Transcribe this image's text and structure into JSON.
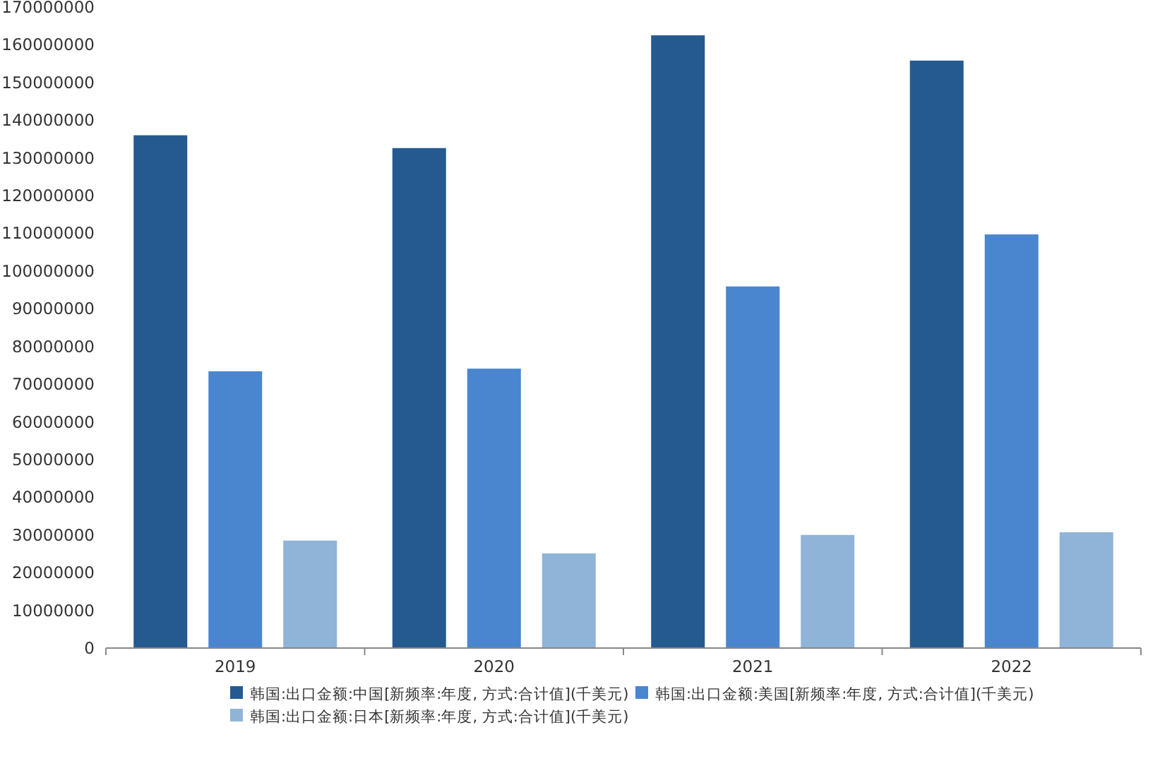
{
  "chart_data": {
    "type": "bar",
    "categories": [
      "2019",
      "2020",
      "2021",
      "2022"
    ],
    "series": [
      {
        "name": "韩国:出口金额:中国[新频率:年度, 方式:合计值](千美元)",
        "color": "#255a91",
        "values": [
          136000000,
          132600000,
          162500000,
          155800000
        ]
      },
      {
        "name": "韩国:出口金额:美国[新频率:年度, 方式:合计值](千美元)",
        "color": "#4a86cf",
        "values": [
          73400000,
          74100000,
          95900000,
          109700000
        ]
      },
      {
        "name": "韩国:出口金额:日本[新频率:年度, 方式:合计值](千美元)",
        "color": "#8fb4d8",
        "values": [
          28500000,
          25100000,
          30000000,
          30700000
        ]
      }
    ],
    "ylim": [
      0,
      170000000
    ],
    "yticks": [
      0,
      10000000,
      20000000,
      30000000,
      40000000,
      50000000,
      60000000,
      70000000,
      80000000,
      90000000,
      100000000,
      110000000,
      120000000,
      130000000,
      140000000,
      150000000,
      160000000,
      170000000
    ],
    "grid": false,
    "legend": "bottom"
  }
}
